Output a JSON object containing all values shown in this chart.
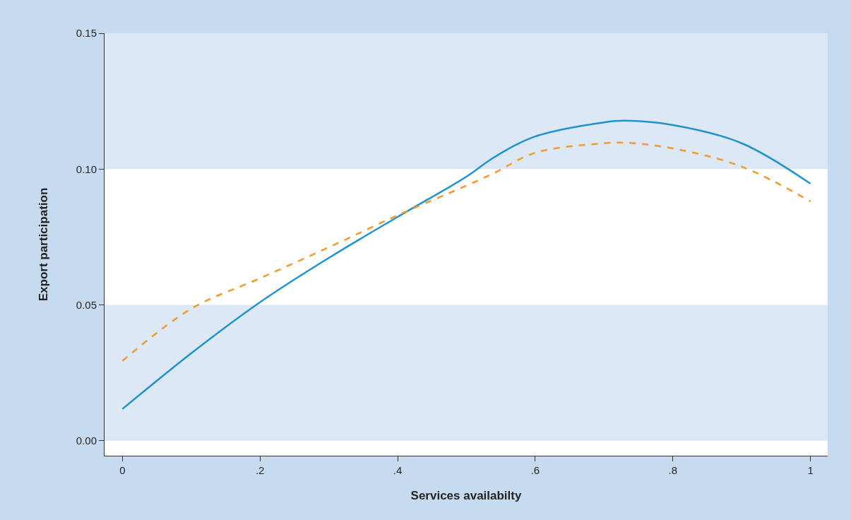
{
  "chart_data": {
    "type": "line",
    "xlabel": "Services availabilty",
    "ylabel": "Export participation",
    "x": [
      0,
      0.1,
      0.2,
      0.3,
      0.4,
      0.5,
      0.54,
      0.6,
      0.7,
      0.73,
      0.8,
      0.9,
      1
    ],
    "series": [
      {
        "color": "#1f93d1",
        "line_style": "solid",
        "values": [
          0.0117,
          0.0322,
          0.051,
          0.0673,
          0.0824,
          0.0972,
          0.1043,
          0.112,
          0.1172,
          0.1178,
          0.1162,
          0.1095,
          0.0946
        ]
      },
      {
        "color": "#f39a2b",
        "line_style": "dashed",
        "values": [
          0.0294,
          0.0486,
          0.0598,
          0.0712,
          0.083,
          0.0939,
          0.0985,
          0.106,
          0.1095,
          0.1097,
          0.1076,
          0.1009,
          0.0881
        ]
      }
    ],
    "xlim": [
      -0.026,
      1.025
    ],
    "ylim": [
      -0.0055,
      0.15
    ],
    "xticks": [
      0,
      {
        "value": 0.2,
        "label": ".2"
      },
      {
        "value": 0.4,
        "label": ".4"
      },
      {
        "value": 0.6,
        "label": ".6"
      },
      {
        "value": 0.8,
        "label": ".8"
      },
      1
    ],
    "yticks": [
      {
        "value": 0,
        "label": "0.00"
      },
      {
        "value": 0.05,
        "label": "0.05"
      },
      {
        "value": 0.1,
        "label": "0.10"
      },
      {
        "value": 0.15,
        "label": "0.15"
      }
    ],
    "bands": [
      {
        "axis": "y",
        "from": 0,
        "to": 0.05,
        "color": "#dce8f5"
      },
      {
        "axis": "y",
        "from": 0.1,
        "to": 0.15,
        "color": "#dce8f5"
      }
    ],
    "grid": false,
    "marker": "none"
  }
}
